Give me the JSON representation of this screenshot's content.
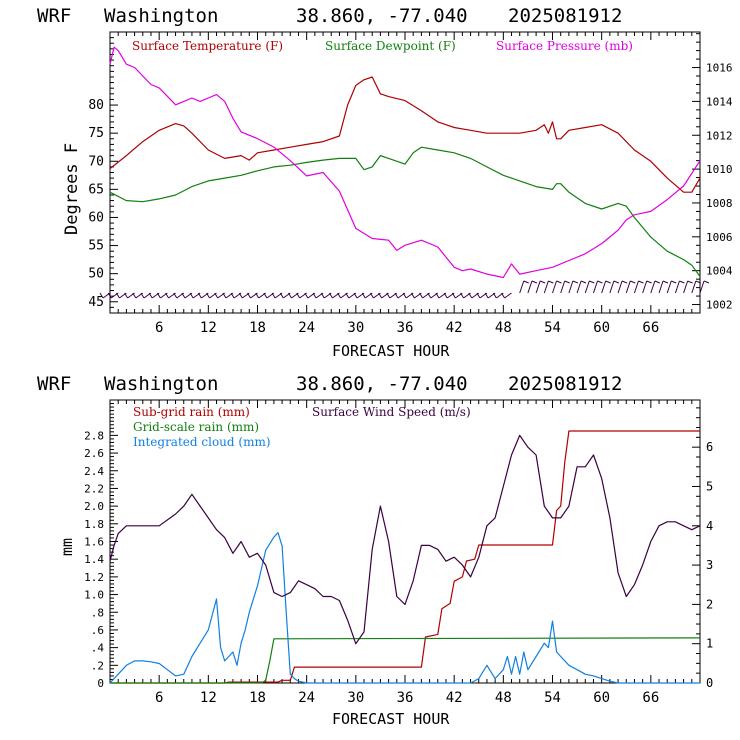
{
  "colors": {
    "temperature": "#b00000",
    "dewpoint": "#108010",
    "pressure": "#e000e0",
    "subgrid_rain": "#b00000",
    "gridscale_rain": "#108010",
    "cloud": "#1080e0",
    "wind": "#3a0040",
    "barbs": "#3a0040",
    "axis": "#000000"
  },
  "chart_data": [
    {
      "type": "line",
      "header": {
        "model": "WRF",
        "location": "Washington",
        "coords": "38.860, -77.040",
        "datetime": "2025081912"
      },
      "xlabel": "FORECAST HOUR",
      "ylabel": "Degrees F",
      "xlim": [
        0,
        72
      ],
      "ylim": [
        43,
        93
      ],
      "y2lim": [
        1001.5,
        1018.1
      ],
      "x_ticks": [
        6,
        12,
        18,
        24,
        30,
        36,
        42,
        48,
        54,
        60,
        66
      ],
      "x_tick_labels": [
        "6",
        "12",
        "18",
        "24",
        "30",
        "36",
        "42",
        "48",
        "54",
        "60",
        "66"
      ],
      "y_ticks": [
        45,
        50,
        55,
        60,
        65,
        70,
        75,
        80
      ],
      "y_tick_labels": [
        "45",
        "50",
        "55",
        "60",
        "65",
        "70",
        "75",
        "80"
      ],
      "y2_ticks": [
        1002,
        1004,
        1006,
        1008,
        1010,
        1012,
        1014,
        1016
      ],
      "y2_tick_labels": [
        "1002",
        "1004",
        "1006",
        "1008",
        "1010",
        "1012",
        "1014",
        "1016"
      ],
      "legend": [
        "Surface Temperature (F)",
        "Surface Dewpoint (F)",
        "Surface Pressure (mb)"
      ],
      "series": [
        {
          "name": "Surface Temperature (F)",
          "axis": "left",
          "x": [
            0,
            2,
            4,
            6,
            8,
            9,
            10,
            12,
            14,
            16,
            17,
            18,
            20,
            22,
            24,
            26,
            28,
            29,
            30,
            31,
            32,
            33,
            34,
            36,
            38,
            40,
            42,
            44,
            46,
            48,
            50,
            52,
            53,
            53.5,
            54,
            54.5,
            55,
            56,
            58,
            60,
            62,
            64,
            66,
            68,
            70,
            71,
            72
          ],
          "y": [
            68.7,
            71,
            73.5,
            75.5,
            76.7,
            76.3,
            75,
            72,
            70.5,
            71,
            70.2,
            71.5,
            72,
            72.5,
            73,
            73.5,
            74.5,
            80,
            83.5,
            84.5,
            85,
            82,
            81.5,
            80.8,
            79,
            77,
            76,
            75.5,
            75,
            75,
            75,
            75.5,
            76.5,
            75,
            77,
            74,
            74,
            75.5,
            76,
            76.5,
            75,
            72,
            70,
            67,
            64.5,
            64.5,
            67
          ]
        },
        {
          "name": "Surface Dewpoint (F)",
          "axis": "left",
          "x": [
            0,
            2,
            4,
            6,
            8,
            10,
            12,
            14,
            16,
            18,
            20,
            22,
            24,
            26,
            28,
            30,
            31,
            32,
            33,
            34,
            36,
            37,
            38,
            40,
            42,
            44,
            46,
            48,
            50,
            52,
            54,
            54.5,
            55,
            56,
            58,
            60,
            62,
            63,
            64,
            66,
            68,
            70,
            71,
            72
          ],
          "y": [
            64.5,
            63,
            62.8,
            63.3,
            64,
            65.5,
            66.5,
            67,
            67.5,
            68.3,
            69,
            69.3,
            69.8,
            70.2,
            70.5,
            70.5,
            68.5,
            69,
            71,
            70.5,
            69.5,
            71.5,
            72.5,
            72,
            71.5,
            70.5,
            69,
            67.5,
            66.5,
            65.5,
            65,
            66,
            66,
            64.5,
            62.5,
            61.5,
            62.5,
            62,
            60,
            56.5,
            54,
            52.5,
            51.5,
            49.5
          ]
        },
        {
          "name": "Surface Pressure (mb)",
          "axis": "right",
          "x": [
            0,
            0.5,
            1,
            2,
            3,
            4,
            5,
            6,
            7,
            8,
            9,
            10,
            11,
            12,
            13,
            14,
            15,
            16,
            18,
            20,
            22,
            24,
            26,
            28,
            30,
            32,
            34,
            35,
            36,
            38,
            40,
            42,
            43,
            44,
            46,
            48,
            49,
            50,
            52,
            54,
            56,
            58,
            60,
            62,
            63,
            64,
            66,
            68,
            70,
            72
          ],
          "y": [
            1016.2,
            1017.2,
            1017,
            1016.2,
            1016,
            1015.5,
            1015,
            1014.8,
            1014.3,
            1013.8,
            1014,
            1014.2,
            1014,
            1014.2,
            1014.4,
            1014,
            1013,
            1012.2,
            1011.8,
            1011.3,
            1010.5,
            1009.6,
            1009.8,
            1008.7,
            1006.5,
            1005.9,
            1005.8,
            1005.2,
            1005.5,
            1005.8,
            1005.4,
            1004.2,
            1004,
            1004.1,
            1003.8,
            1003.6,
            1004.4,
            1003.8,
            1004,
            1004.2,
            1004.6,
            1005,
            1005.6,
            1006.4,
            1007,
            1007.3,
            1007.5,
            1008.2,
            1009,
            1010.5
          ]
        }
      ],
      "wind_barbs": {
        "x": [
          0,
          1,
          2,
          3,
          4,
          5,
          6,
          7,
          8,
          9,
          10,
          11,
          12,
          13,
          14,
          15,
          16,
          17,
          18,
          19,
          20,
          21,
          22,
          23,
          24,
          25,
          26,
          27,
          28,
          29,
          30,
          31,
          32,
          33,
          34,
          35,
          36,
          37,
          38,
          39,
          40,
          41,
          42,
          43,
          44,
          45,
          46,
          47,
          48,
          49,
          50,
          51,
          52,
          53,
          54,
          55,
          56,
          57,
          58,
          59,
          60,
          61,
          62,
          63,
          64,
          65,
          66,
          67,
          68,
          69,
          70,
          71,
          72
        ]
      }
    },
    {
      "type": "line",
      "header": {
        "model": "WRF",
        "location": "Washington",
        "coords": "38.860, -77.040",
        "datetime": "2025081912"
      },
      "xlabel": "FORECAST HOUR",
      "ylabel": "mm",
      "xlim": [
        0,
        72
      ],
      "ylim": [
        0,
        3.2
      ],
      "y2lim": [
        0,
        7.2
      ],
      "x_ticks": [
        6,
        12,
        18,
        24,
        30,
        36,
        42,
        48,
        54,
        60,
        66
      ],
      "x_tick_labels": [
        "6",
        "12",
        "18",
        "24",
        "30",
        "36",
        "42",
        "48",
        "54",
        "60",
        "66"
      ],
      "y_ticks": [
        0,
        0.2,
        0.4,
        0.6,
        0.8,
        1.0,
        1.2,
        1.4,
        1.6,
        1.8,
        2.0,
        2.2,
        2.4,
        2.6,
        2.8
      ],
      "y_tick_labels": [
        "0",
        ".2",
        ".4",
        ".6",
        ".8",
        "1.0",
        "1.2",
        "1.4",
        "1.6",
        "1.8",
        "2.0",
        "2.2",
        "2.4",
        "2.6",
        "2.8"
      ],
      "y2_ticks": [
        0,
        1,
        2,
        3,
        4,
        5,
        6
      ],
      "y2_tick_labels": [
        "0",
        "1",
        "2",
        "3",
        "4",
        "5",
        "6"
      ],
      "legend": [
        "Sub-grid rain (mm)",
        "Surface Wind Speed (m/s)",
        "Grid-scale rain (mm)",
        "Integrated cloud (mm)"
      ],
      "series": [
        {
          "name": "Sub-grid rain (mm)",
          "axis": "left",
          "x": [
            0,
            14,
            14.5,
            20.5,
            21,
            22,
            22.5,
            38,
            38.5,
            40,
            40.5,
            41.5,
            42,
            43,
            43.5,
            44.5,
            45,
            54,
            54.5,
            55,
            55.5,
            56,
            72
          ],
          "y": [
            0,
            0,
            0.01,
            0.01,
            0.03,
            0.03,
            0.18,
            0.18,
            0.52,
            0.55,
            0.84,
            0.9,
            1.15,
            1.2,
            1.38,
            1.4,
            1.56,
            1.56,
            1.95,
            2.0,
            2.5,
            2.85,
            2.85
          ]
        },
        {
          "name": "Grid-scale rain (mm)",
          "axis": "left",
          "x": [
            0,
            18.5,
            19,
            19.5,
            20,
            72
          ],
          "y": [
            0,
            0,
            0.03,
            0.25,
            0.5,
            0.51
          ]
        },
        {
          "name": "Integrated cloud (mm)",
          "axis": "left",
          "x": [
            0,
            1,
            2,
            3,
            4,
            5,
            6,
            7,
            8,
            9,
            10,
            11,
            12,
            13,
            13.5,
            14,
            14.5,
            15,
            15.5,
            16,
            16.5,
            17,
            18,
            19,
            20,
            20.5,
            21,
            21.5,
            22,
            22.5,
            23,
            24,
            44,
            45,
            46,
            47,
            48,
            48.5,
            49,
            49.5,
            50,
            50.5,
            51,
            52,
            53,
            53.5,
            54,
            54.5,
            55,
            56,
            57,
            58,
            59,
            60,
            61,
            62,
            72
          ],
          "y": [
            0,
            0.1,
            0.2,
            0.25,
            0.25,
            0.24,
            0.22,
            0.15,
            0.08,
            0.1,
            0.3,
            0.45,
            0.6,
            0.95,
            0.4,
            0.25,
            0.3,
            0.35,
            0.2,
            0.45,
            0.6,
            0.8,
            1.1,
            1.5,
            1.65,
            1.7,
            1.55,
            0.8,
            0.1,
            0.05,
            0.02,
            0,
            0,
            0.05,
            0.2,
            0.05,
            0.15,
            0.3,
            0.1,
            0.3,
            0.1,
            0.35,
            0.15,
            0.3,
            0.45,
            0.4,
            0.7,
            0.35,
            0.3,
            0.2,
            0.15,
            0.1,
            0.08,
            0.05,
            0.02,
            0,
            0
          ]
        },
        {
          "name": "Surface Wind Speed (m/s)",
          "axis": "right",
          "x": [
            0,
            0.5,
            1,
            2,
            4,
            6,
            8,
            9,
            10,
            11,
            12,
            13,
            14,
            15,
            16,
            17,
            18,
            19,
            20,
            21,
            22,
            23,
            24,
            25,
            26,
            27,
            28,
            29,
            30,
            31,
            32,
            33,
            34,
            35,
            36,
            37,
            38,
            39,
            40,
            41,
            42,
            43,
            44,
            45,
            46,
            47,
            48,
            49,
            50,
            51,
            52,
            53,
            54,
            55,
            56,
            57,
            58,
            59,
            60,
            61,
            62,
            63,
            64,
            65,
            66,
            67,
            68,
            69,
            70,
            71,
            72
          ],
          "y": [
            3.1,
            3.5,
            3.8,
            4.0,
            4.0,
            4.0,
            4.3,
            4.5,
            4.8,
            4.5,
            4.2,
            3.9,
            3.7,
            3.3,
            3.6,
            3.2,
            3.3,
            3.0,
            2.3,
            2.2,
            2.3,
            2.6,
            2.5,
            2.4,
            2.2,
            2.2,
            2.1,
            1.6,
            1.0,
            1.3,
            3.4,
            4.5,
            3.6,
            2.2,
            2.0,
            2.6,
            3.5,
            3.5,
            3.4,
            3.1,
            3.2,
            3.0,
            2.7,
            3.2,
            4.0,
            4.2,
            5.0,
            5.8,
            6.3,
            6.0,
            5.8,
            4.5,
            4.2,
            4.2,
            4.5,
            5.5,
            5.5,
            5.8,
            5.2,
            4.2,
            2.8,
            2.2,
            2.5,
            3.0,
            3.6,
            4.0,
            4.1,
            4.1,
            4.0,
            3.9,
            4.0
          ]
        }
      ]
    }
  ]
}
